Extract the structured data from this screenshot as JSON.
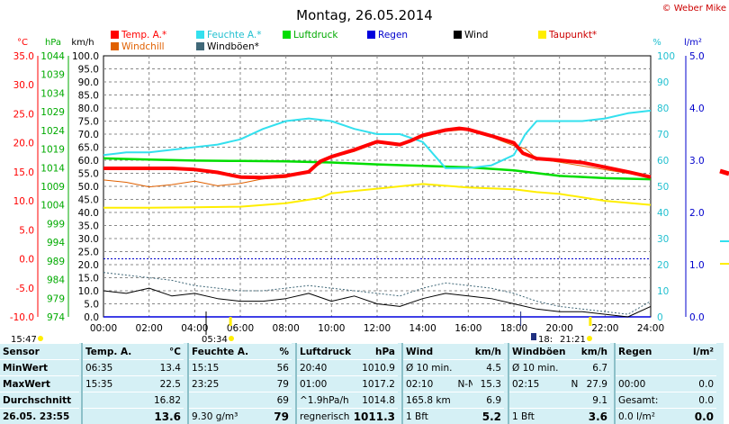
{
  "title": "Montag, 26.05.2014",
  "credit": "© Weber Mike",
  "colors": {
    "temp": "#ff0000",
    "humidity": "#33e0ee",
    "pressure": "#00dd00",
    "rain": "#0000dd",
    "wind": "#000000",
    "dewpoint": "#ffee00",
    "windchill": "#e06000",
    "gusts": "#406878",
    "table_bg": "#d5f0f5",
    "table_divider": "#8cc0c8"
  },
  "legend": [
    {
      "label": "Temp. A.*",
      "color": "#ff0000"
    },
    {
      "label": "Feuchte A.*",
      "color": "#33e0ee"
    },
    {
      "label": "Luftdruck",
      "color": "#00dd00"
    },
    {
      "label": "Regen",
      "color": "#0000dd"
    },
    {
      "label": "Wind",
      "color": "#000000"
    },
    {
      "label": "Taupunkt*",
      "color": "#ffee00"
    },
    {
      "label": "Windchill",
      "color": "#e06000"
    },
    {
      "label": "Windböen*",
      "color": "#406878"
    }
  ],
  "axes": {
    "temp": {
      "unit": "°C",
      "ticks": [
        "35.0",
        "30.0",
        "25.0",
        "20.0",
        "15.0",
        "10.0",
        "5.0",
        "0.0",
        "-5.0",
        "-10.0"
      ],
      "range": [
        -10,
        35
      ]
    },
    "pressure": {
      "unit": "hPa",
      "ticks": [
        "1044",
        "1039",
        "1034",
        "1029",
        "1024",
        "1019",
        "1014",
        "1009",
        "1004",
        "999",
        "994",
        "989",
        "984",
        "979",
        "974"
      ],
      "range": [
        974,
        1044
      ]
    },
    "wind": {
      "unit": "km/h",
      "ticks": [
        "100.0",
        "95.0",
        "90.0",
        "85.0",
        "80.0",
        "75.0",
        "70.0",
        "65.0",
        "60.0",
        "55.0",
        "50.0",
        "45.0",
        "40.0",
        "35.0",
        "30.0",
        "25.0",
        "20.0",
        "15.0",
        "10.0",
        "5.0",
        "0.0"
      ],
      "range": [
        0,
        100
      ]
    },
    "humidity": {
      "unit": "%",
      "ticks": [
        "100",
        "90",
        "80",
        "70",
        "60",
        "50",
        "40",
        "30",
        "20",
        "10",
        "0"
      ],
      "range": [
        0,
        100
      ]
    },
    "rain": {
      "unit": "l/m²",
      "ticks": [
        "5.0",
        "4.0",
        "3.0",
        "2.0",
        "1.0",
        "0.0"
      ],
      "range": [
        0,
        5
      ]
    },
    "time": {
      "ticks": [
        "00:00",
        "02:00",
        "04:00",
        "06:00",
        "08:00",
        "10:00",
        "12:00",
        "14:00",
        "16:00",
        "18:00",
        "20:00",
        "22:00",
        "24:00"
      ]
    }
  },
  "time_markers": {
    "left": "15:47",
    "sunrise": "05:34",
    "sunset": "21:21",
    "moonset": "18:"
  },
  "chart_data": {
    "type": "line",
    "x_unit": "hours",
    "series": [
      {
        "name": "Temp. A.*",
        "axis": "temp",
        "points": [
          [
            0,
            15.6
          ],
          [
            1,
            15.6
          ],
          [
            2,
            15.6
          ],
          [
            3,
            15.6
          ],
          [
            4,
            15.4
          ],
          [
            5,
            14.9
          ],
          [
            6,
            14.1
          ],
          [
            7,
            14.0
          ],
          [
            8,
            14.3
          ],
          [
            9,
            15.0
          ],
          [
            9.5,
            16.8
          ],
          [
            10,
            17.6
          ],
          [
            11,
            18.8
          ],
          [
            12,
            20.2
          ],
          [
            13,
            19.7
          ],
          [
            13.5,
            20.4
          ],
          [
            14,
            21.3
          ],
          [
            15,
            22.2
          ],
          [
            15.6,
            22.5
          ],
          [
            16,
            22.3
          ],
          [
            17,
            21.2
          ],
          [
            18,
            20.0
          ],
          [
            18.4,
            18.2
          ],
          [
            19,
            17.3
          ],
          [
            20,
            17.0
          ],
          [
            21,
            16.6
          ],
          [
            22,
            15.8
          ],
          [
            23,
            15.0
          ],
          [
            24,
            14.1
          ]
        ]
      },
      {
        "name": "Feuchte A.*",
        "axis": "humidity",
        "points": [
          [
            0,
            62
          ],
          [
            1,
            63
          ],
          [
            2,
            63
          ],
          [
            3,
            64
          ],
          [
            4,
            65
          ],
          [
            5,
            66
          ],
          [
            6,
            68
          ],
          [
            7,
            72
          ],
          [
            8,
            75
          ],
          [
            9,
            76
          ],
          [
            10,
            75
          ],
          [
            11,
            72
          ],
          [
            12,
            70
          ],
          [
            13,
            70
          ],
          [
            14,
            67
          ],
          [
            15,
            57
          ],
          [
            16,
            57
          ],
          [
            17,
            58
          ],
          [
            18,
            62
          ],
          [
            18.5,
            70
          ],
          [
            19,
            75
          ],
          [
            20,
            75
          ],
          [
            21,
            75
          ],
          [
            22,
            76
          ],
          [
            23,
            78
          ],
          [
            24,
            79
          ]
        ]
      },
      {
        "name": "Luftdruck",
        "axis": "pressure",
        "points": [
          [
            0,
            1016.5
          ],
          [
            2,
            1016.2
          ],
          [
            4,
            1015.9
          ],
          [
            6,
            1015.8
          ],
          [
            8,
            1015.7
          ],
          [
            10,
            1015.4
          ],
          [
            12,
            1014.9
          ],
          [
            14,
            1014.5
          ],
          [
            16,
            1014.1
          ],
          [
            18,
            1013.3
          ],
          [
            20,
            1011.8
          ],
          [
            22,
            1011.2
          ],
          [
            24,
            1010.9
          ]
        ]
      },
      {
        "name": "Regen",
        "axis": "rain",
        "points": [
          [
            0,
            0
          ],
          [
            24,
            0
          ]
        ]
      },
      {
        "name": "Wind",
        "axis": "wind",
        "points": [
          [
            0,
            10
          ],
          [
            1,
            9
          ],
          [
            2,
            11
          ],
          [
            3,
            8
          ],
          [
            4,
            9
          ],
          [
            5,
            7
          ],
          [
            6,
            6
          ],
          [
            7,
            6
          ],
          [
            8,
            7
          ],
          [
            9,
            9
          ],
          [
            10,
            6
          ],
          [
            11,
            8
          ],
          [
            12,
            5
          ],
          [
            13,
            4
          ],
          [
            14,
            7
          ],
          [
            15,
            9
          ],
          [
            16,
            8
          ],
          [
            17,
            7
          ],
          [
            18,
            5
          ],
          [
            19,
            3
          ],
          [
            20,
            2
          ],
          [
            21,
            2
          ],
          [
            22,
            1
          ],
          [
            23,
            0
          ],
          [
            24,
            4
          ]
        ]
      },
      {
        "name": "Taupunkt*",
        "axis": "temp",
        "points": [
          [
            0,
            8.8
          ],
          [
            2,
            8.8
          ],
          [
            4,
            8.9
          ],
          [
            6,
            9.0
          ],
          [
            8,
            9.6
          ],
          [
            9.5,
            10.5
          ],
          [
            10,
            11.3
          ],
          [
            12,
            12.1
          ],
          [
            14,
            12.9
          ],
          [
            16,
            12.3
          ],
          [
            18,
            12.0
          ],
          [
            19,
            11.5
          ],
          [
            20,
            11.2
          ],
          [
            22,
            10.0
          ],
          [
            24,
            9.3
          ]
        ]
      },
      {
        "name": "Windchill",
        "axis": "temp",
        "points": [
          [
            0,
            13.6
          ],
          [
            1,
            13.2
          ],
          [
            2,
            12.4
          ],
          [
            3,
            12.8
          ],
          [
            4,
            13.4
          ],
          [
            5,
            12.6
          ],
          [
            6,
            13.0
          ],
          [
            7,
            13.8
          ],
          [
            8,
            14.0
          ],
          [
            9,
            15.2
          ],
          [
            10,
            17.5
          ],
          [
            11,
            18.5
          ],
          [
            12,
            20.0
          ],
          [
            13,
            19.5
          ],
          [
            14,
            21.0
          ],
          [
            15,
            22.0
          ],
          [
            16,
            22.3
          ],
          [
            17,
            21.0
          ],
          [
            18,
            19.5
          ],
          [
            18.5,
            19.0
          ],
          [
            19,
            17.3
          ],
          [
            24,
            14.1
          ]
        ]
      },
      {
        "name": "Windböen*",
        "axis": "wind",
        "points": [
          [
            0,
            17
          ],
          [
            1,
            16
          ],
          [
            2,
            15
          ],
          [
            3,
            14
          ],
          [
            4,
            12
          ],
          [
            5,
            11
          ],
          [
            6,
            10
          ],
          [
            7,
            10
          ],
          [
            8,
            11
          ],
          [
            9,
            12
          ],
          [
            10,
            11
          ],
          [
            11,
            10
          ],
          [
            12,
            9
          ],
          [
            13,
            8
          ],
          [
            14,
            11
          ],
          [
            15,
            13
          ],
          [
            16,
            12
          ],
          [
            17,
            11
          ],
          [
            18,
            9
          ],
          [
            19,
            6
          ],
          [
            20,
            4
          ],
          [
            21,
            3
          ],
          [
            22,
            2
          ],
          [
            23,
            1
          ],
          [
            24,
            6
          ]
        ]
      }
    ]
  },
  "table": {
    "headers": {
      "sensor": "Sensor",
      "temp": "Temp. A.",
      "temp_unit": "°C",
      "hum": "Feuchte A.",
      "hum_unit": "%",
      "press": "Luftdruck",
      "press_unit": "hPa",
      "wind": "Wind",
      "wind_unit": "km/h",
      "gust": "Windböen",
      "gust_unit": "km/h",
      "rain": "Regen",
      "rain_unit": "l/m²"
    },
    "rows": [
      {
        "label": "MinWert",
        "temp_time": "06:35",
        "temp_val": "13.4",
        "hum_time": "15:15",
        "hum_val": "56",
        "press_time": "20:40",
        "press_val": "1010.9",
        "wind_time": "Ø 10 min.",
        "wind_val": "4.5",
        "gust_time": "Ø 10 min.",
        "gust_val": "6.7",
        "rain_time": "",
        "rain_val": ""
      },
      {
        "label": "MaxWert",
        "temp_time": "15:35",
        "temp_val": "22.5",
        "hum_time": "23:25",
        "hum_val": "79",
        "press_time": "01:00",
        "press_val": "1017.2",
        "wind_time": "02:10",
        "wind_dir": "N-NO",
        "wind_val": "15.3",
        "gust_time": "02:15",
        "gust_dir": "N",
        "gust_val": "27.9",
        "rain_time": "00:00",
        "rain_val": "0.0"
      },
      {
        "label": "Durchschnitt",
        "temp_time": "",
        "temp_val": "16.82",
        "hum_time": "",
        "hum_val": "69",
        "press_time": "^1.9hPa/h",
        "press_val": "1014.8",
        "wind_time": "165.8 km",
        "wind_val": "6.9",
        "gust_time": "",
        "gust_val": "9.1",
        "rain_time": "Gesamt:",
        "rain_val": "0.0"
      },
      {
        "label": "26.05. 23:55",
        "temp_time": "",
        "temp_val": "13.6",
        "hum_time": "9.30 g/m³",
        "hum_val": "79",
        "press_time": "regnerisch",
        "press_val": "1011.3",
        "wind_time": "1 Bft",
        "wind_val": "5.2",
        "gust_time": "1 Bft",
        "gust_val": "3.6",
        "rain_time": "0.0 l/m²",
        "rain_val": "0.0"
      }
    ]
  }
}
